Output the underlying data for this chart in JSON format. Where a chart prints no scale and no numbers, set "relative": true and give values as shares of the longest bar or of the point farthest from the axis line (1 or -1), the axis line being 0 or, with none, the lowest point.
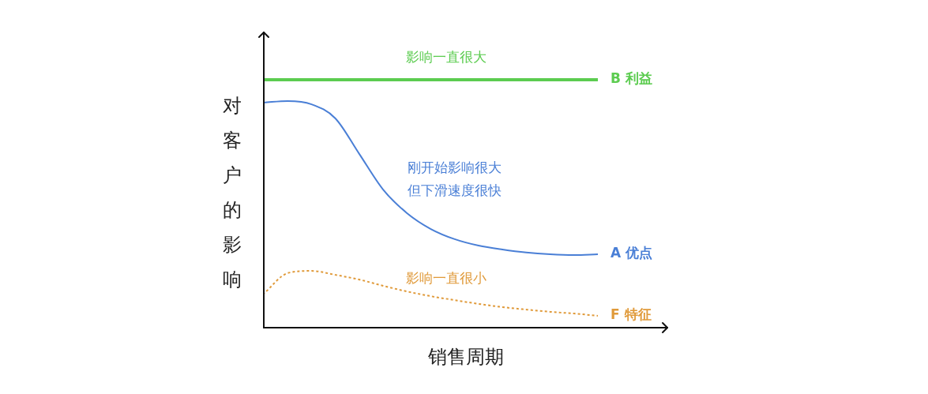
{
  "chart_data": {
    "type": "line",
    "relative": true,
    "xlabel": "销售周期",
    "ylabel": "对客户的影响",
    "categories": [
      null,
      null,
      null,
      null,
      null,
      null,
      null,
      null,
      null,
      null,
      null,
      null,
      null,
      null,
      null
    ],
    "series": [
      {
        "name": "B 利益",
        "color": "#5ccc50",
        "values": [
          1,
          1,
          1,
          1,
          1,
          1,
          1,
          1,
          1,
          1,
          1,
          1,
          1,
          1,
          1
        ]
      },
      {
        "name": "A 优点",
        "color": "#4a7fd6",
        "values": [
          0.908,
          0.914,
          0.901,
          0.844,
          0.701,
          0.557,
          0.462,
          0.398,
          0.357,
          0.331,
          0.315,
          0.303,
          0.296,
          0.293,
          0.296
        ]
      },
      {
        "name": "F 特征",
        "color": "#e09a3a",
        "line_style": "dotted",
        "values": [
          0.137,
          0.22,
          0.229,
          0.213,
          0.194,
          0.169,
          0.146,
          0.127,
          0.111,
          0.096,
          0.083,
          0.073,
          0.064,
          0.057,
          0.048
        ]
      }
    ],
    "annotations": [
      "影响一直很大",
      "刚开始影响很大",
      "但下滑速度很快",
      "影响一直很小"
    ]
  }
}
